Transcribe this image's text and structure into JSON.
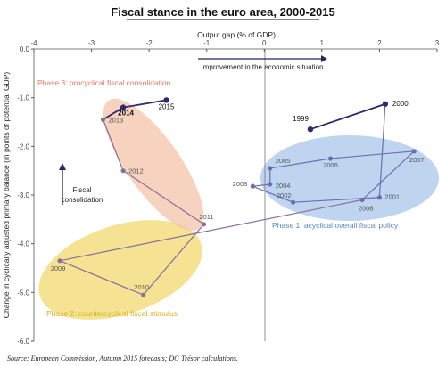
{
  "chart_data": {
    "type": "scatter",
    "title": "Fiscal stance in the euro area, 2000-2015",
    "xlabel": "Output gap (% of GDP)",
    "ylabel": "Change in cyclically adjusted primary balance (in points of potential GDP)",
    "xlim": [
      -4,
      3
    ],
    "ylim": [
      -6,
      0
    ],
    "x_ticks": [
      "-4",
      "-3",
      "-2",
      "-1",
      "0",
      "1",
      "2",
      "3"
    ],
    "y_ticks": [
      "0.0",
      "-1.0",
      "-2.0",
      "-3.0",
      "-4.0",
      "-5.0",
      "-6.0"
    ],
    "series": [
      {
        "color": "#2e2a6e",
        "points": [
          {
            "label": "1999",
            "x": 0.8,
            "y": -1.65
          },
          {
            "label": "2000",
            "x": 2.1,
            "y": -1.13
          },
          {
            "label": "2001",
            "x": 2.0,
            "y": -3.05
          },
          {
            "label": "2002",
            "x": 0.5,
            "y": -3.15
          },
          {
            "label": "2003",
            "x": -0.2,
            "y": -2.82
          },
          {
            "label": "2004",
            "x": 0.1,
            "y": -2.78
          },
          {
            "label": "2005",
            "x": 0.1,
            "y": -2.45
          },
          {
            "label": "2006",
            "x": 1.15,
            "y": -2.25
          },
          {
            "label": "2007",
            "x": 2.6,
            "y": -2.1
          },
          {
            "label": "2008",
            "x": 1.7,
            "y": -3.1
          },
          {
            "label": "2009",
            "x": -3.55,
            "y": -4.35
          },
          {
            "label": "2010",
            "x": -2.1,
            "y": -5.05
          },
          {
            "label": "2011",
            "x": -1.05,
            "y": -3.6
          },
          {
            "label": "2012",
            "x": -2.45,
            "y": -2.5
          },
          {
            "label": "2013",
            "x": -2.8,
            "y": -1.45
          },
          {
            "label": "2014",
            "x": -2.45,
            "y": -1.2
          },
          {
            "label": "2015",
            "x": -1.7,
            "y": -1.05
          }
        ]
      }
    ],
    "phases": [
      {
        "label": "Phase 1: acyclical overall fiscal policy",
        "color": "#a8c6ea"
      },
      {
        "label": "Phase 2: countercyclical fiscal stimulus",
        "color": "#f1da6f"
      },
      {
        "label": "Phase 3: procyclical fiscal consolidation",
        "color": "#f4c3a9"
      }
    ],
    "annotations": {
      "improvement": "Improvement in the economic situation",
      "consolidation_line1": "Fiscal",
      "consolidation_line2": "consolidation"
    },
    "source": "Source: European Commission, Autumn 2015 forecasts; DG Trésor calculations.",
    "grid": false
  }
}
